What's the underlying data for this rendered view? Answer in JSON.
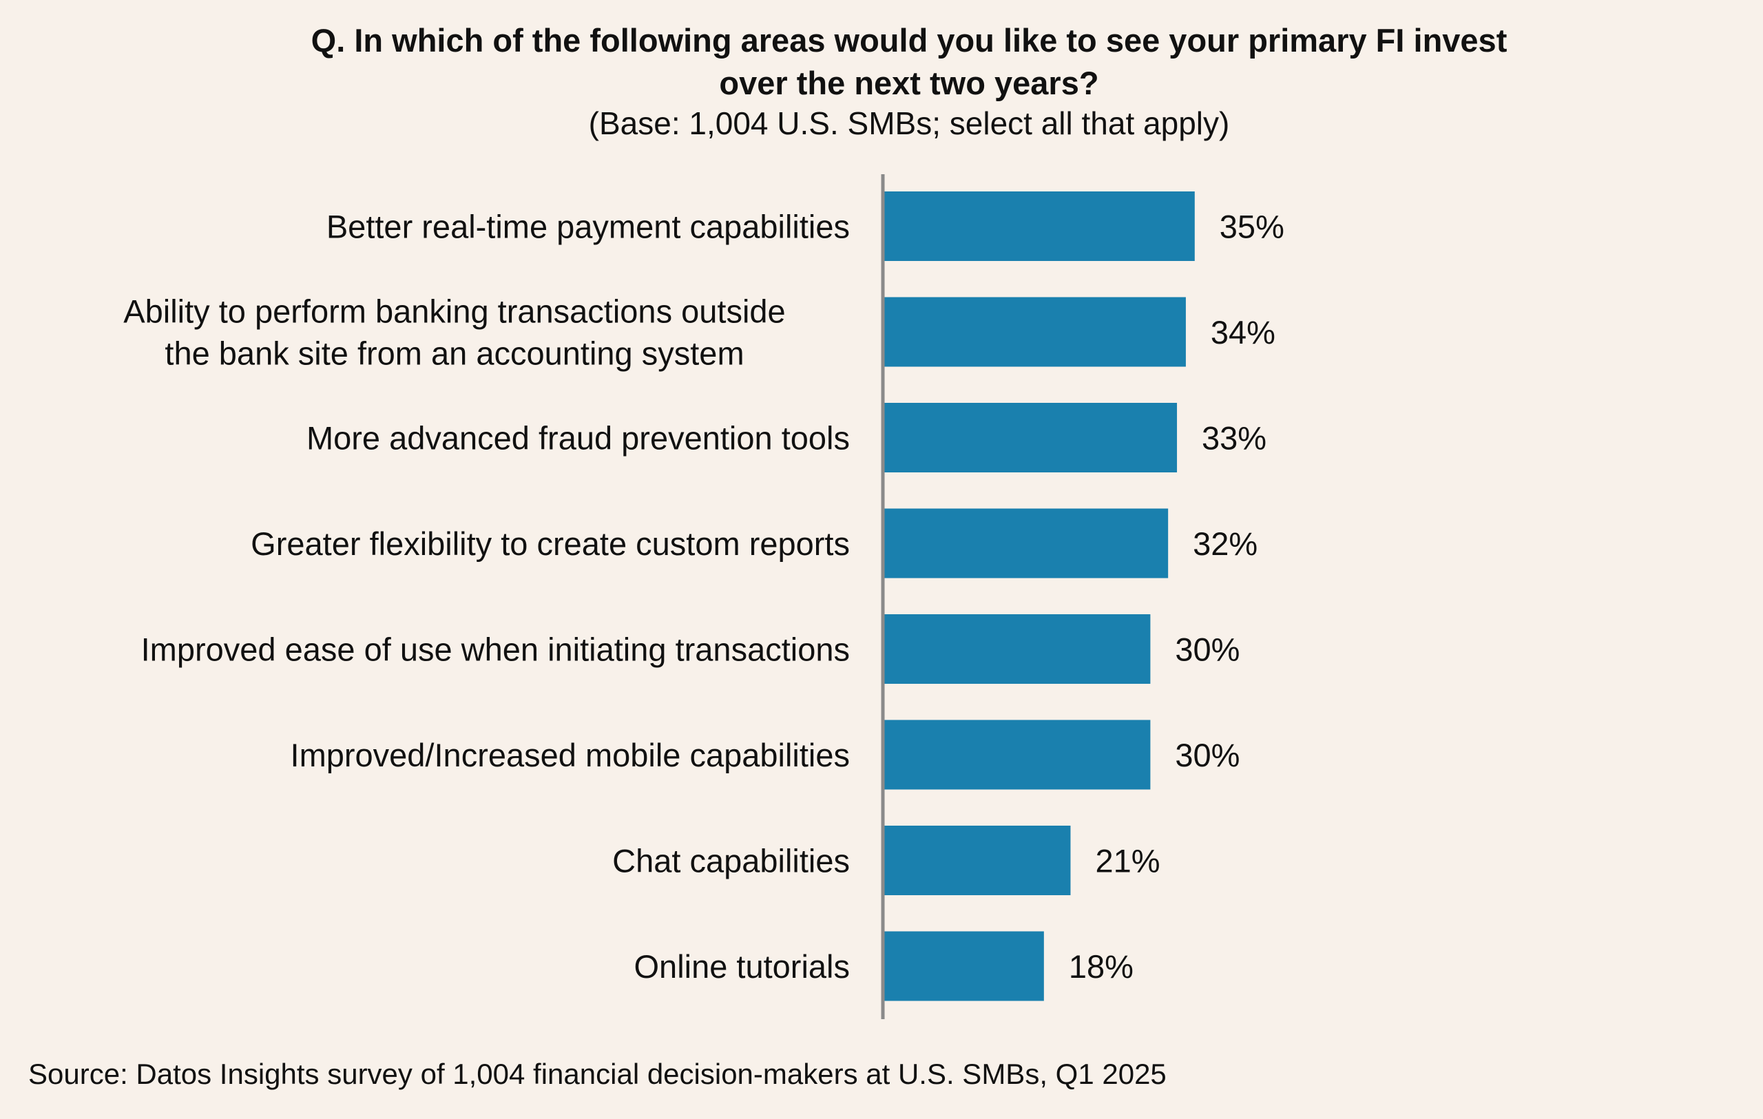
{
  "chart_data": {
    "type": "bar",
    "orientation": "horizontal",
    "title": "Q. In which of the following areas would you like to see your primary FI invest over the next two years?",
    "title_lines": [
      "Q. In which of the following areas would you like to see your primary FI invest",
      "over the next two years?"
    ],
    "subtitle": "(Base: 1,004 U.S. SMBs; select all that apply)",
    "categories": [
      [
        "Better real-time payment capabilities"
      ],
      [
        "Ability to perform banking transactions outside",
        "the bank site from an accounting system"
      ],
      [
        "More advanced fraud prevention tools"
      ],
      [
        "Greater flexibility to create custom reports"
      ],
      [
        "Improved ease of use when initiating transactions"
      ],
      [
        "Improved/Increased mobile capabilities"
      ],
      [
        "Chat capabilities"
      ],
      [
        "Online tutorials"
      ]
    ],
    "values": [
      35,
      34,
      33,
      32,
      30,
      30,
      21,
      18
    ],
    "value_labels": [
      "35%",
      "34%",
      "33%",
      "32%",
      "30%",
      "30%",
      "21%",
      "18%"
    ],
    "xlim": [
      0,
      100
    ],
    "grid": false,
    "bar_color": "#1a80ae",
    "axis_color": "#8a8a8a",
    "source": "Source: Datos Insights survey of 1,004 financial decision-makers at U.S. SMBs, Q1 2025"
  }
}
